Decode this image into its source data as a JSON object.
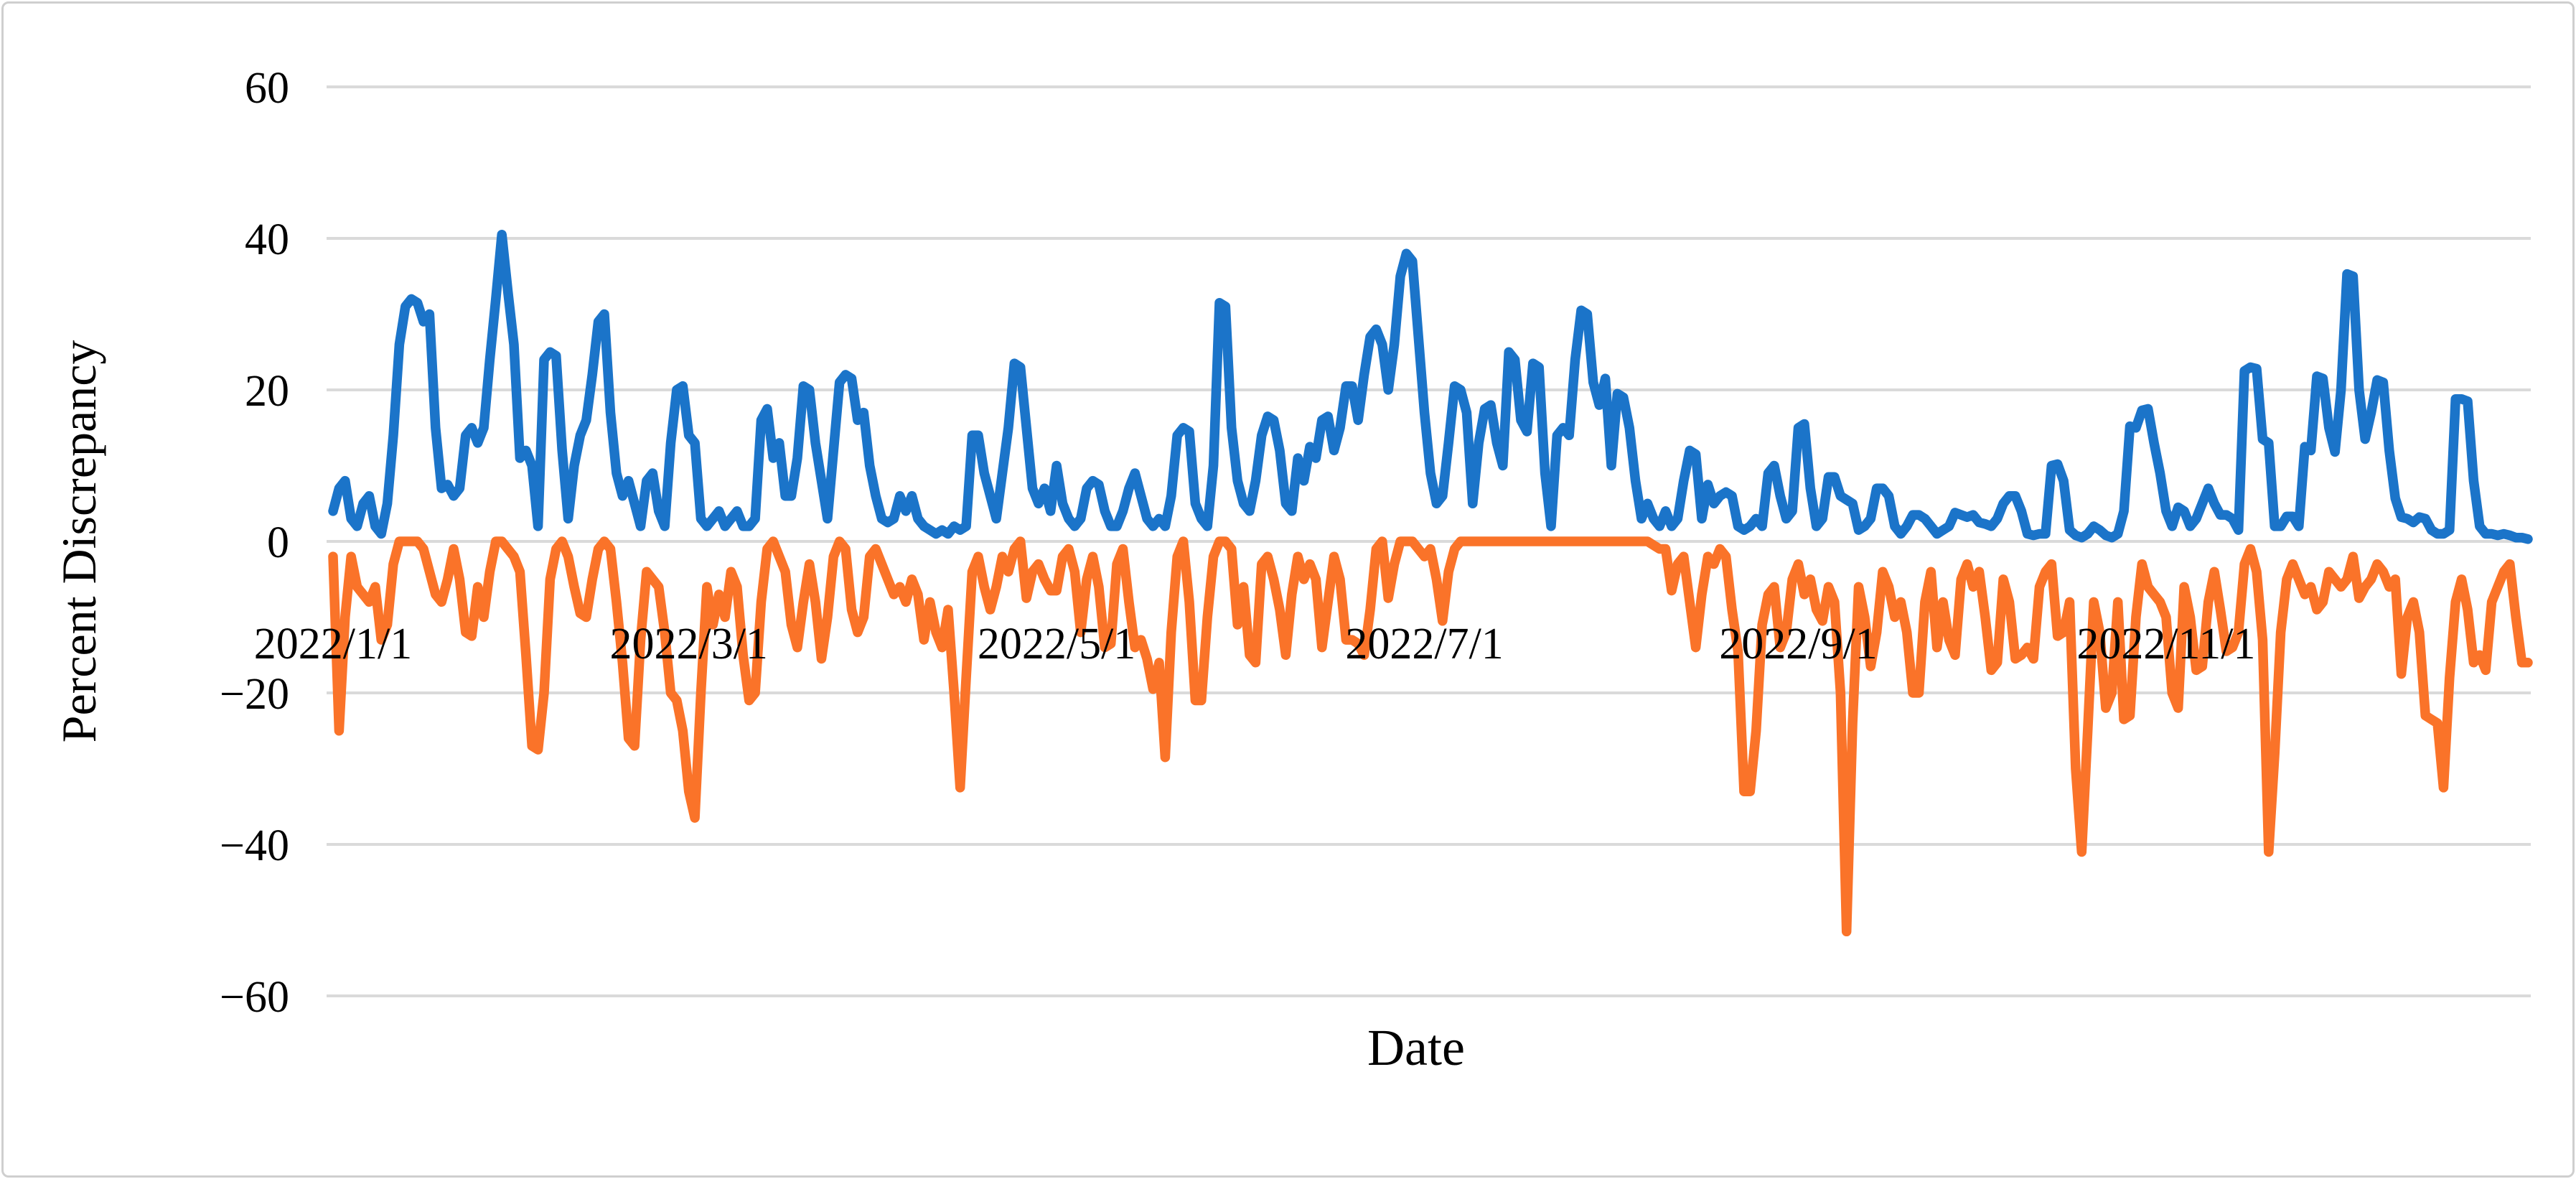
{
  "chart_data": {
    "type": "line",
    "title": "",
    "xlabel": "Date",
    "ylabel": "Percent Discrepancy",
    "ylim": [
      -60,
      60
    ],
    "grid": "horizontal",
    "legend": "none",
    "y_ticks": [
      60,
      40,
      20,
      0,
      -20,
      -40,
      -60
    ],
    "y_tick_labels": [
      "60",
      "40",
      "20",
      "0",
      "−20",
      "−40",
      "−60"
    ],
    "x_tick_labels": [
      "2022/1/1",
      "2022/3/1",
      "2022/5/1",
      "2022/7/1",
      "2022/9/1",
      "2022/11/1"
    ],
    "x_tick_days": [
      0,
      59,
      120,
      181,
      243,
      304
    ],
    "x_range_days": 365,
    "colors": {
      "blue_series": "#1B74C9",
      "orange_series": "#FA7329",
      "gridline": "#DADADA",
      "frame_border": "#CFCFCF",
      "text": "#000000"
    },
    "series": [
      {
        "name": "blue_series",
        "color": "#1B74C9",
        "values": [
          4,
          7,
          8,
          3,
          2,
          5,
          6,
          2,
          1,
          5,
          14,
          26,
          31,
          32,
          31.5,
          29,
          30,
          15,
          7,
          7.5,
          6,
          7,
          14,
          15,
          13,
          15,
          24,
          32,
          40.5,
          33,
          26,
          11,
          12,
          10,
          2,
          24,
          25,
          24.5,
          12,
          3,
          10,
          14,
          16,
          22,
          29,
          30,
          17,
          9,
          6,
          8,
          5,
          2,
          8,
          9,
          4,
          2,
          13,
          20,
          20.5,
          14,
          13,
          3,
          2,
          3,
          4,
          2,
          3,
          4,
          2,
          2,
          3,
          16,
          17.5,
          11,
          13,
          6,
          6,
          11,
          20.5,
          20,
          13,
          8,
          3,
          12,
          21,
          22,
          21.5,
          16,
          17,
          10,
          6,
          3,
          2.5,
          3,
          6,
          4,
          6,
          3,
          2,
          1.5,
          1,
          1.5,
          1,
          2,
          1.5,
          2,
          14,
          14,
          9,
          6,
          3,
          9,
          15,
          23.5,
          23,
          15,
          7,
          5,
          7,
          4,
          10,
          5,
          3,
          2,
          3,
          7,
          8,
          7.5,
          4,
          2,
          2,
          4,
          7,
          9,
          6,
          3,
          2,
          3,
          2,
          6,
          14,
          15,
          14.5,
          5,
          3,
          2,
          10,
          31.5,
          31,
          15,
          8,
          5,
          4,
          8,
          14,
          16.5,
          16,
          12,
          5,
          4,
          11,
          8,
          12.5,
          11,
          16,
          16.5,
          12,
          15,
          20.5,
          20.5,
          16,
          22,
          27,
          28,
          26,
          20,
          26,
          35,
          38,
          37,
          27,
          17,
          9,
          5,
          6,
          13,
          20.5,
          20,
          17,
          5,
          13,
          17.5,
          18,
          13,
          10,
          25,
          24,
          16,
          14.5,
          23.5,
          23,
          9,
          2,
          14,
          15,
          14,
          24,
          30.5,
          30,
          21,
          18,
          21.5,
          10,
          19.5,
          19,
          15,
          8,
          3,
          5,
          3,
          2,
          4,
          2,
          3,
          8,
          12,
          11.5,
          3,
          7.5,
          5,
          6,
          6.5,
          6,
          2,
          1.5,
          2,
          3,
          2,
          9,
          10,
          6,
          3,
          4,
          15,
          15.5,
          7,
          2,
          3,
          8.5,
          8.5,
          6,
          5.5,
          5,
          1.5,
          2,
          3,
          7,
          7,
          6,
          2,
          1,
          2,
          3.5,
          3.5,
          3,
          2,
          1,
          1.5,
          2,
          3.8,
          3.5,
          3.2,
          3.5,
          2.5,
          2.3,
          2,
          3,
          5,
          6,
          6,
          4,
          1,
          0.8,
          1,
          1,
          10,
          10.2,
          8,
          1.5,
          0.8,
          0.5,
          1,
          2,
          1.5,
          0.8,
          0.5,
          1,
          4,
          15.2,
          15,
          17.3,
          17.5,
          13,
          9,
          4,
          2,
          4.5,
          4,
          2,
          3,
          5,
          7,
          5,
          3.5,
          3.5,
          3,
          1.5,
          22.5,
          23,
          22.8,
          13.5,
          13,
          2,
          2,
          3.3,
          3.3,
          2,
          12.5,
          12,
          21.8,
          21.5,
          15,
          11.8,
          20,
          35.3,
          35,
          20,
          13.5,
          17,
          21.3,
          21,
          12,
          5.7,
          3.2,
          3,
          2.5,
          3.2,
          3,
          1.5,
          1,
          1,
          1.5,
          18.8,
          18.8,
          18.5,
          8,
          2,
          1,
          1,
          0.8,
          1,
          0.8,
          0.5,
          0.5,
          0.3
        ]
      },
      {
        "name": "orange_series",
        "color": "#FA7329",
        "values": [
          -2,
          -25,
          -10,
          -2,
          -6,
          -7,
          -8,
          -6,
          -13,
          -11,
          -3,
          0,
          0,
          0,
          0,
          -1,
          -4,
          -7,
          -8,
          -5,
          -1,
          -5,
          -12,
          -12.5,
          -6,
          -10,
          -4,
          0,
          0,
          -1,
          -2,
          -4,
          -15,
          -27,
          -27.5,
          -20,
          -5,
          -1,
          0,
          -2,
          -6,
          -9.5,
          -10,
          -5,
          -1,
          0,
          -1,
          -8,
          -16,
          -26,
          -27,
          -13,
          -4,
          -5,
          -6,
          -12,
          -20,
          -21,
          -25,
          -33,
          -36.5,
          -20,
          -6,
          -11,
          -7,
          -10,
          -4,
          -6,
          -15,
          -21,
          -20,
          -8,
          -1,
          0,
          -2,
          -4,
          -11,
          -14,
          -8,
          -3,
          -8,
          -15.5,
          -10,
          -2,
          0,
          -1,
          -9,
          -12,
          -10,
          -2,
          -1,
          -3,
          -5,
          -7,
          -6,
          -8,
          -5,
          -7,
          -13,
          -8,
          -12,
          -14,
          -9,
          -20,
          -32.5,
          -18,
          -4,
          -2,
          -6,
          -9,
          -6,
          -2,
          -4,
          -1,
          0,
          -7.5,
          -4,
          -3,
          -5,
          -6.5,
          -6.5,
          -2,
          -1,
          -4,
          -12,
          -5,
          -2,
          -6,
          -14,
          -13.5,
          -3,
          -1,
          -8,
          -14,
          -13,
          -15.5,
          -19.5,
          -16,
          -28.5,
          -12,
          -2,
          0,
          -8,
          -21,
          -21,
          -10,
          -2,
          0,
          0,
          -1,
          -11,
          -6,
          -15,
          -16,
          -3,
          -2,
          -5,
          -9,
          -15,
          -7,
          -2,
          -5,
          -3,
          -5,
          -14,
          -8,
          -2,
          -5,
          -13,
          -13,
          -13.5,
          -15,
          -9,
          -1,
          0,
          -7.5,
          -3,
          0,
          0,
          0,
          -1,
          -2,
          -1,
          -5,
          -10.5,
          -4,
          -1,
          0,
          0,
          0,
          0,
          0,
          0,
          0,
          0,
          0,
          0,
          0,
          0,
          0,
          0,
          0,
          0,
          0,
          0,
          0,
          0,
          0,
          0,
          0,
          0,
          0,
          0,
          0,
          0,
          0,
          0,
          0,
          0,
          -0.5,
          -1,
          -1,
          -6.5,
          -3,
          -2,
          -8,
          -14,
          -7,
          -2,
          -3,
          -1,
          -2,
          -9,
          -14.5,
          -33,
          -33,
          -25,
          -11,
          -7,
          -6,
          -14,
          -12,
          -5,
          -3,
          -7,
          -5,
          -9,
          -10.5,
          -6,
          -8,
          -20,
          -51.5,
          -24,
          -6,
          -10,
          -16.5,
          -12,
          -4,
          -6,
          -10,
          -8,
          -12,
          -20,
          -20,
          -8,
          -4,
          -14,
          -8,
          -13,
          -15,
          -5,
          -3,
          -6,
          -4,
          -10,
          -17,
          -16,
          -5,
          -8,
          -15.5,
          -15,
          -14,
          -15.5,
          -6,
          -4,
          -3,
          -12.5,
          -12,
          -8,
          -30,
          -41,
          -25,
          -8,
          -12,
          -22,
          -20,
          -8,
          -23.5,
          -23,
          -10,
          -3,
          -6,
          -7,
          -8,
          -10,
          -20,
          -22,
          -6,
          -10,
          -17,
          -16.5,
          -8,
          -4,
          -9,
          -14.5,
          -14,
          -12,
          -3,
          -1,
          -4,
          -13,
          -41,
          -28,
          -12,
          -5,
          -3,
          -5,
          -7,
          -6,
          -9,
          -8,
          -4,
          -5,
          -6,
          -5,
          -2,
          -7.5,
          -6,
          -5,
          -3,
          -4,
          -6,
          -5,
          -17.5,
          -10,
          -8,
          -12,
          -23,
          -23.5,
          -24,
          -32.5,
          -18,
          -8,
          -5,
          -9,
          -16,
          -15,
          -17,
          -8,
          -6,
          -4,
          -3,
          -10,
          -16,
          -16
        ]
      }
    ]
  }
}
